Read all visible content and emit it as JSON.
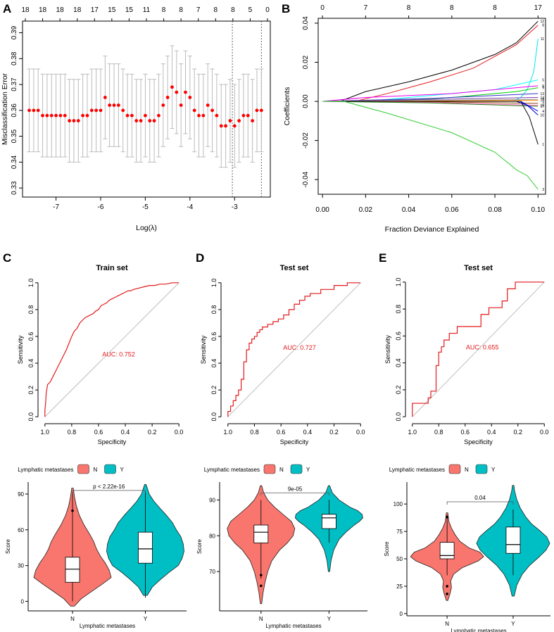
{
  "panel_letters": [
    "A",
    "B",
    "C",
    "D",
    "E"
  ],
  "chart_data": [
    {
      "id": "A",
      "type": "scatter",
      "title": "",
      "xlabel": "Log(λ)",
      "ylabel": "Misclassification Error",
      "xlim": [
        -7.75,
        -2.2
      ],
      "ylim": [
        0.3265,
        0.3945
      ],
      "xticks": [
        "-7",
        "-6",
        "-5",
        "-4",
        "-3"
      ],
      "yticks": [
        "0.33",
        "0.34",
        "0.35",
        "0.36",
        "0.37",
        "0.38",
        "0.39"
      ],
      "x": [
        -7.6,
        -7.5,
        -7.4,
        -7.3,
        -7.2,
        -7.1,
        -7.0,
        -6.9,
        -6.8,
        -6.7,
        -6.6,
        -6.5,
        -6.4,
        -6.3,
        -6.2,
        -6.1,
        -6.0,
        -5.9,
        -5.8,
        -5.7,
        -5.6,
        -5.5,
        -5.4,
        -5.3,
        -5.2,
        -5.1,
        -5.0,
        -4.9,
        -4.8,
        -4.7,
        -4.6,
        -4.5,
        -4.4,
        -4.3,
        -4.2,
        -4.1,
        -4.0,
        -3.9,
        -3.8,
        -3.7,
        -3.6,
        -3.5,
        -3.4,
        -3.3,
        -3.2,
        -3.1,
        -3.0,
        -2.9,
        -2.8,
        -2.7,
        -2.6,
        -2.5,
        -2.4
      ],
      "y": [
        0.36,
        0.36,
        0.36,
        0.358,
        0.358,
        0.358,
        0.358,
        0.358,
        0.358,
        0.356,
        0.356,
        0.356,
        0.358,
        0.358,
        0.36,
        0.36,
        0.36,
        0.365,
        0.362,
        0.362,
        0.362,
        0.36,
        0.358,
        0.358,
        0.356,
        0.356,
        0.358,
        0.356,
        0.356,
        0.358,
        0.362,
        0.365,
        0.369,
        0.367,
        0.362,
        0.367,
        0.365,
        0.36,
        0.358,
        0.358,
        0.362,
        0.36,
        0.358,
        0.354,
        0.354,
        0.356,
        0.354,
        0.356,
        0.358,
        0.358,
        0.356,
        0.36,
        0.36
      ],
      "error_bar_half_width": 0.016,
      "vlines": [
        -3.05,
        -2.4
      ],
      "top_axis": [
        "18",
        "18",
        "18",
        "18",
        "17",
        "15",
        "15",
        "11",
        "8",
        "8",
        "7",
        "8",
        "8",
        "5",
        "0"
      ]
    },
    {
      "id": "B",
      "type": "line",
      "title": "",
      "xlabel": "Fraction Deviance Explained",
      "ylabel": "Coefficients",
      "xlim": [
        -0.002,
        0.1035
      ],
      "ylim": [
        -0.0475,
        0.0425
      ],
      "xticks": [
        "0.00",
        "0.02",
        "0.04",
        "0.06",
        "0.08",
        "0.10"
      ],
      "yticks": [
        "-0.04",
        "-0.02",
        "0.00",
        "0.02",
        "0.04"
      ],
      "top_axis": [
        "0",
        "7",
        "8",
        "8",
        "8",
        "17"
      ],
      "series": [
        {
          "name": "12",
          "color": "#000000",
          "x": [
            0.008,
            0.02,
            0.04,
            0.06,
            0.08,
            0.09,
            0.1
          ],
          "y": [
            0,
            0.005,
            0.01,
            0.016,
            0.024,
            0.03,
            0.041
          ]
        },
        {
          "name": "8",
          "color": "#e41a1c",
          "x": [
            0.015,
            0.03,
            0.05,
            0.07,
            0.09,
            0.1
          ],
          "y": [
            0,
            0.004,
            0.01,
            0.017,
            0.029,
            0.039
          ]
        },
        {
          "name": "11",
          "color": "#00e5ee",
          "x": [
            0.088,
            0.092,
            0.095,
            0.098,
            0.1
          ],
          "y": [
            0,
            0.002,
            0.006,
            0.015,
            0.032
          ]
        },
        {
          "name": "5",
          "color": "#00ffff",
          "x": [
            0.02,
            0.05,
            0.08,
            0.1
          ],
          "y": [
            0,
            0.003,
            0.006,
            0.011
          ]
        },
        {
          "name": "6",
          "color": "#ee00ee",
          "x": [
            0.0,
            0.02,
            0.06,
            0.1
          ],
          "y": [
            0,
            0.002,
            0.004,
            0.008
          ]
        },
        {
          "name": "9",
          "color": "#00cc00",
          "x": [
            0.03,
            0.06,
            0.09,
            0.1
          ],
          "y": [
            0,
            0.002,
            0.005,
            0.007
          ]
        },
        {
          "name": "13",
          "color": "#3333cc",
          "x": [
            0.0,
            0.05,
            0.1
          ],
          "y": [
            0,
            0.0015,
            0.004
          ]
        },
        {
          "name": "14",
          "color": "#7b3fa0",
          "x": [
            0.0,
            0.05,
            0.1
          ],
          "y": [
            0,
            0.001,
            0.002
          ]
        },
        {
          "name": "15",
          "color": "#999999",
          "x": [
            0.0,
            0.05,
            0.1
          ],
          "y": [
            0,
            0.0005,
            0.001
          ]
        },
        {
          "name": "2",
          "color": "#ff8800",
          "x": [
            0.0,
            0.05,
            0.1
          ],
          "y": [
            0,
            0.0002,
            0.0005
          ]
        },
        {
          "name": "7",
          "color": "#8b4513",
          "x": [
            0.0,
            0.05,
            0.1
          ],
          "y": [
            0,
            -0.0002,
            -0.001
          ]
        },
        {
          "name": "16",
          "color": "#ff69b4",
          "x": [
            0.0,
            0.05,
            0.1
          ],
          "y": [
            0,
            -0.0005,
            -0.002
          ]
        },
        {
          "name": "17",
          "color": "#228b22",
          "x": [
            0.0,
            0.05,
            0.1
          ],
          "y": [
            0,
            -0.0008,
            -0.0025
          ]
        },
        {
          "name": "10",
          "color": "#0000cd",
          "x": [
            0.09,
            0.095,
            0.1
          ],
          "y": [
            0,
            -0.002,
            -0.007
          ]
        },
        {
          "name": "4",
          "color": "#0000ff",
          "x": [
            0.092,
            0.1
          ],
          "y": [
            0,
            -0.005
          ]
        },
        {
          "name": "1",
          "color": "#000000",
          "x": [
            0.092,
            0.096,
            0.1
          ],
          "y": [
            0,
            -0.008,
            -0.022
          ]
        },
        {
          "name": "3",
          "color": "#32cd32",
          "x": [
            0.01,
            0.03,
            0.06,
            0.08,
            0.09,
            0.095,
            0.1
          ],
          "y": [
            0,
            -0.006,
            -0.016,
            -0.026,
            -0.035,
            -0.038,
            -0.045
          ]
        }
      ]
    },
    {
      "id": "C",
      "type": "line",
      "title": "Train set",
      "xlabel": "Specificity",
      "ylabel": "Sensitivity",
      "xlim": [
        1.02,
        -0.02
      ],
      "ylim": [
        -0.02,
        1.02
      ],
      "xticks": [
        "1.0",
        "0.8",
        "0.6",
        "0.4",
        "0.2",
        "0.0"
      ],
      "yticks": [
        "0.0",
        "0.2",
        "0.4",
        "0.6",
        "0.8",
        "1.0"
      ],
      "auc_label": "AUC: 0.752",
      "auc_pos": [
        0.45,
        0.45
      ],
      "step": false,
      "x": [
        1.0,
        1.0,
        0.995,
        0.99,
        0.98,
        0.96,
        0.94,
        0.92,
        0.9,
        0.88,
        0.86,
        0.84,
        0.82,
        0.8,
        0.78,
        0.76,
        0.74,
        0.72,
        0.7,
        0.68,
        0.66,
        0.64,
        0.62,
        0.6,
        0.58,
        0.56,
        0.54,
        0.52,
        0.5,
        0.48,
        0.46,
        0.44,
        0.42,
        0.4,
        0.38,
        0.36,
        0.34,
        0.3,
        0.26,
        0.22,
        0.18,
        0.14,
        0.1,
        0.05,
        0.0
      ],
      "y": [
        0.0,
        0.05,
        0.1,
        0.18,
        0.24,
        0.26,
        0.3,
        0.34,
        0.38,
        0.42,
        0.46,
        0.5,
        0.55,
        0.6,
        0.64,
        0.66,
        0.7,
        0.72,
        0.74,
        0.75,
        0.76,
        0.77,
        0.79,
        0.8,
        0.83,
        0.84,
        0.85,
        0.87,
        0.88,
        0.89,
        0.9,
        0.91,
        0.92,
        0.93,
        0.94,
        0.94,
        0.95,
        0.96,
        0.97,
        0.98,
        0.98,
        0.99,
        0.99,
        1.0,
        1.0
      ]
    },
    {
      "id": "D",
      "type": "line",
      "title": "Test set",
      "xlabel": "Specificity",
      "ylabel": "Sensitivity",
      "xlim": [
        1.02,
        -0.02
      ],
      "ylim": [
        -0.02,
        1.02
      ],
      "xticks": [
        "1.0",
        "0.8",
        "0.6",
        "0.4",
        "0.2",
        "0.0"
      ],
      "yticks": [
        "0.0",
        "0.2",
        "0.4",
        "0.6",
        "0.8",
        "1.0"
      ],
      "auc_label": "AUC: 0.727",
      "auc_pos": [
        0.46,
        0.5
      ],
      "step": true,
      "x": [
        1.0,
        0.98,
        0.96,
        0.94,
        0.92,
        0.9,
        0.88,
        0.86,
        0.84,
        0.82,
        0.8,
        0.78,
        0.76,
        0.74,
        0.72,
        0.7,
        0.66,
        0.62,
        0.58,
        0.54,
        0.5,
        0.46,
        0.42,
        0.38,
        0.3,
        0.2,
        0.1,
        0.0
      ],
      "y": [
        0.0,
        0.04,
        0.08,
        0.12,
        0.16,
        0.2,
        0.28,
        0.41,
        0.5,
        0.55,
        0.58,
        0.6,
        0.63,
        0.65,
        0.67,
        0.67,
        0.69,
        0.71,
        0.73,
        0.76,
        0.8,
        0.84,
        0.87,
        0.9,
        0.92,
        0.95,
        0.98,
        1.0
      ]
    },
    {
      "id": "E",
      "type": "line",
      "title": "Test set",
      "xlabel": "Specificity",
      "ylabel": "Sensitivity",
      "xlim": [
        1.02,
        -0.02
      ],
      "ylim": [
        -0.02,
        1.02
      ],
      "xticks": [
        "1.0",
        "0.8",
        "0.6",
        "0.4",
        "0.2",
        "0.0"
      ],
      "yticks": [
        "0.0",
        "0.2",
        "0.4",
        "0.6",
        "0.8",
        "1.0"
      ],
      "auc_label": "AUC: 0.655",
      "auc_pos": [
        0.47,
        0.5
      ],
      "step": true,
      "x": [
        1.0,
        0.88,
        0.86,
        0.82,
        0.8,
        0.78,
        0.76,
        0.72,
        0.66,
        0.48,
        0.42,
        0.32,
        0.28,
        0.22,
        0.05,
        0.0
      ],
      "y": [
        0.0,
        0.1,
        0.14,
        0.19,
        0.38,
        0.48,
        0.52,
        0.57,
        0.62,
        0.67,
        0.76,
        0.81,
        0.86,
        0.95,
        1.0,
        1.0
      ]
    },
    {
      "id": "C2",
      "type": "violin",
      "title": "",
      "legend_title": "Lymphatic metastases",
      "legend_entries": [
        "N",
        "Y"
      ],
      "xlabel": "Lymphatic metastases",
      "ylabel": "Score",
      "categories": [
        "N",
        "Y"
      ],
      "colors": [
        "#f8766d",
        "#00bfc4"
      ],
      "ylim": [
        -8,
        100
      ],
      "yticks": [
        0,
        30,
        60,
        90
      ],
      "p_label": "p < 2.22e-16",
      "bracket_y": 93,
      "boxes": [
        {
          "q1": 16,
          "median": 27,
          "q3": 37,
          "whisker_low": 0,
          "whisker_high": 92,
          "outliers": [
            76
          ]
        },
        {
          "q1": 32,
          "median": 44,
          "q3": 58,
          "whisker_low": 3,
          "whisker_high": 92,
          "outliers": []
        }
      ],
      "violins": [
        {
          "ymin": -4,
          "ymax": 95,
          "yvals": [
            -4,
            2,
            8,
            14,
            20,
            26,
            32,
            38,
            44,
            50,
            56,
            64,
            72,
            80,
            88,
            95
          ],
          "widths": [
            0.05,
            0.22,
            0.48,
            0.75,
            1.0,
            0.95,
            0.85,
            0.72,
            0.62,
            0.55,
            0.45,
            0.3,
            0.18,
            0.1,
            0.05,
            0.02
          ]
        },
        {
          "ymin": 5,
          "ymax": 98,
          "yvals": [
            5,
            12,
            18,
            24,
            30,
            36,
            42,
            48,
            54,
            60,
            66,
            72,
            78,
            84,
            90,
            98
          ],
          "widths": [
            0.05,
            0.18,
            0.38,
            0.6,
            0.85,
            0.95,
            1.0,
            0.98,
            0.92,
            0.8,
            0.7,
            0.55,
            0.38,
            0.22,
            0.1,
            0.02
          ]
        }
      ]
    },
    {
      "id": "D2",
      "type": "violin",
      "title": "",
      "legend_title": "Lymphatic metastases",
      "legend_entries": [
        "N",
        "Y"
      ],
      "xlabel": "Lymphatic metastases",
      "ylabel": "Score",
      "categories": [
        "N",
        "Y"
      ],
      "colors": [
        "#f8766d",
        "#00bfc4"
      ],
      "ylim": [
        59,
        95
      ],
      "yticks": [
        70,
        80,
        90
      ],
      "p_label": "9e-05",
      "bracket_y": 92,
      "boxes": [
        {
          "q1": 78,
          "median": 81,
          "q3": 83,
          "whisker_low": 68,
          "whisker_high": 90,
          "outliers": [
            69,
            66
          ]
        },
        {
          "q1": 82,
          "median": 85,
          "q3": 86,
          "whisker_low": 78,
          "whisker_high": 90,
          "outliers": []
        }
      ],
      "violins": [
        {
          "ymin": 61,
          "ymax": 94,
          "yvals": [
            61,
            64,
            67,
            70,
            73,
            76,
            78,
            80,
            82,
            84,
            86,
            88,
            90,
            92,
            94
          ],
          "widths": [
            0.02,
            0.06,
            0.12,
            0.2,
            0.32,
            0.55,
            0.78,
            0.95,
            1.0,
            0.9,
            0.65,
            0.4,
            0.2,
            0.08,
            0.02
          ]
        },
        {
          "ymin": 70,
          "ymax": 94,
          "yvals": [
            70,
            73,
            76,
            79,
            81,
            83,
            84,
            85,
            86,
            87,
            88,
            90,
            92,
            94
          ],
          "widths": [
            0.02,
            0.06,
            0.14,
            0.3,
            0.5,
            0.75,
            0.9,
            1.0,
            0.98,
            0.85,
            0.62,
            0.3,
            0.1,
            0.02
          ]
        }
      ]
    },
    {
      "id": "E2",
      "type": "violin",
      "title": "",
      "legend_title": "Lymphatic metastases",
      "legend_entries": [
        "N",
        "Y"
      ],
      "xlabel": "Lymphatic metastases",
      "ylabel": "Score",
      "categories": [
        "N",
        "Y"
      ],
      "colors": [
        "#f8766d",
        "#00bfc4"
      ],
      "ylim": [
        -2,
        120
      ],
      "yticks": [
        0,
        25,
        50,
        75,
        100
      ],
      "p_label": "0.04",
      "bracket_y": 102,
      "boxes": [
        {
          "q1": 50,
          "median": 53,
          "q3": 65,
          "whisker_low": 35,
          "whisker_high": 90,
          "outliers": [
            25,
            18,
            88
          ]
        },
        {
          "q1": 55,
          "median": 63,
          "q3": 79,
          "whisker_low": 35,
          "whisker_high": 95,
          "outliers": []
        }
      ],
      "violins": [
        {
          "ymin": 12,
          "ymax": 92,
          "yvals": [
            12,
            18,
            24,
            30,
            36,
            42,
            48,
            52,
            56,
            60,
            66,
            72,
            78,
            84,
            92
          ],
          "widths": [
            0.02,
            0.08,
            0.12,
            0.1,
            0.18,
            0.42,
            0.85,
            1.0,
            0.9,
            0.6,
            0.35,
            0.22,
            0.12,
            0.05,
            0.02
          ]
        },
        {
          "ymin": 16,
          "ymax": 117,
          "yvals": [
            16,
            26,
            36,
            44,
            52,
            58,
            64,
            70,
            76,
            82,
            88,
            96,
            104,
            112,
            117
          ],
          "widths": [
            0.03,
            0.1,
            0.25,
            0.45,
            0.72,
            0.9,
            1.0,
            0.92,
            0.72,
            0.5,
            0.35,
            0.2,
            0.1,
            0.04,
            0.02
          ]
        }
      ]
    }
  ]
}
